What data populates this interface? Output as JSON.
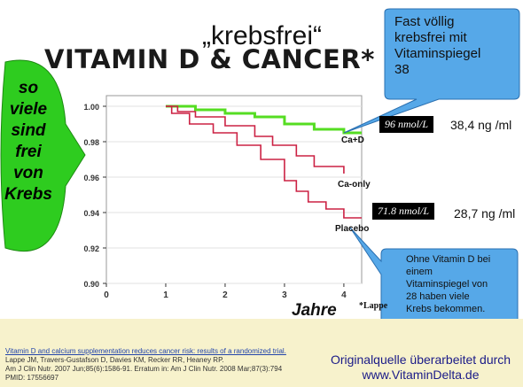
{
  "header": {
    "quote_title": "„krebsfrei“",
    "main_title": "VITAMIN D & CANCER*"
  },
  "left_arrow": {
    "lines": [
      "so",
      "viele",
      "sind",
      "frei",
      "von",
      "Krebs"
    ],
    "color": "#2ecc1f"
  },
  "callout_top": {
    "text_lines": [
      "Fast völlig",
      "krebsfrei mit",
      "Vitaminspiegel",
      "38"
    ],
    "color": "#56a8e8"
  },
  "callout_bottom": {
    "text_lines": [
      "Ohne Vitamin D bei",
      "einem",
      "Vitaminspiegel von",
      "28 haben viele",
      "Krebs bekommen."
    ],
    "color": "#56a8e8"
  },
  "annotations": {
    "high_box": "96 nmol/L",
    "high_ng": "38,4 ng /ml",
    "low_box": "71.8 nmol/L",
    "low_ng": "28,7 ng /ml"
  },
  "chart_data": {
    "type": "line",
    "title": "",
    "xlabel": "Jahre",
    "ylabel": "",
    "xlim": [
      0,
      4.3
    ],
    "ylim": [
      0.9,
      1.0
    ],
    "x_ticks": [
      "0",
      "1",
      "2",
      "3",
      "4"
    ],
    "y_ticks": [
      "1.00",
      "0.98",
      "0.96",
      "0.94",
      "0.92",
      "0.90"
    ],
    "series": [
      {
        "name": "Ca+D",
        "color": "#55dd22",
        "points": [
          [
            1.0,
            1.0
          ],
          [
            1.5,
            0.998
          ],
          [
            2.0,
            0.996
          ],
          [
            2.5,
            0.994
          ],
          [
            3.0,
            0.99
          ],
          [
            3.5,
            0.987
          ],
          [
            4.0,
            0.985
          ],
          [
            4.3,
            0.985
          ]
        ]
      },
      {
        "name": "Ca-only",
        "color": "#cc2244",
        "points": [
          [
            1.0,
            1.0
          ],
          [
            1.2,
            0.997
          ],
          [
            1.5,
            0.994
          ],
          [
            2.0,
            0.989
          ],
          [
            2.5,
            0.983
          ],
          [
            2.8,
            0.978
          ],
          [
            3.2,
            0.972
          ],
          [
            3.5,
            0.966
          ],
          [
            4.0,
            0.962
          ]
        ]
      },
      {
        "name": "Placebo",
        "color": "#cc2244",
        "points": [
          [
            1.0,
            1.0
          ],
          [
            1.1,
            0.996
          ],
          [
            1.4,
            0.99
          ],
          [
            1.8,
            0.985
          ],
          [
            2.2,
            0.978
          ],
          [
            2.6,
            0.97
          ],
          [
            3.0,
            0.958
          ],
          [
            3.2,
            0.952
          ],
          [
            3.4,
            0.946
          ],
          [
            3.7,
            0.942
          ],
          [
            4.0,
            0.937
          ],
          [
            4.3,
            0.937
          ]
        ]
      }
    ],
    "footnote_marker": "*Lappe"
  },
  "citation": {
    "link_text": "Vitamin D and calcium supplementation reduces cancer risk: results of a randomized trial.",
    "lines": [
      "Lappe JM, Travers-Gustafson D, Davies KM, Recker RR, Heaney RP.",
      "Am J Clin Nutr. 2007 Jun;85(6):1586-91.  Erratum in: Am J Clin Nutr. 2008 Mar;87(3):794",
      "PMID: 17556697"
    ]
  },
  "source": {
    "line1": "Originalquelle überarbeitet durch",
    "line2": "www.VitaminDelta.de"
  },
  "colors": {
    "footer_bg": "#f7f2cc",
    "plot_bg": "#ffffff"
  }
}
